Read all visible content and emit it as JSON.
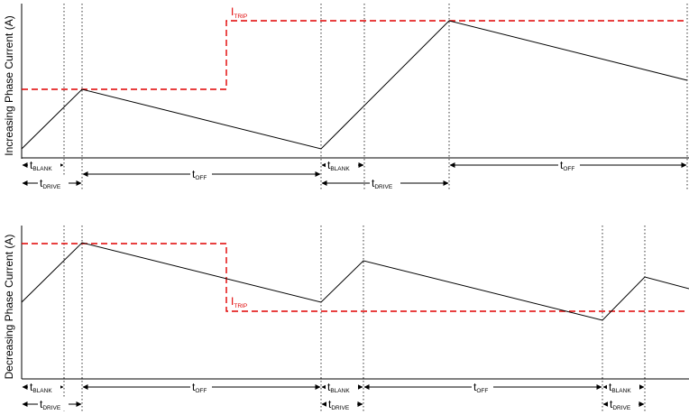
{
  "panels": [
    {
      "ylabel": "Increasing Phase Current (A)",
      "trip_label": {
        "main": "I",
        "sub": "TRIP"
      }
    },
    {
      "ylabel": "Decreasing Phase Current (A)",
      "trip_label": {
        "main": "I",
        "sub": "TRIP"
      }
    }
  ],
  "labels": {
    "t": "t",
    "blank": "BLANK",
    "drive": "DRIVE",
    "off": "OFF"
  },
  "colors": {
    "trip": "#e00000",
    "waveform": "#000000"
  }
}
